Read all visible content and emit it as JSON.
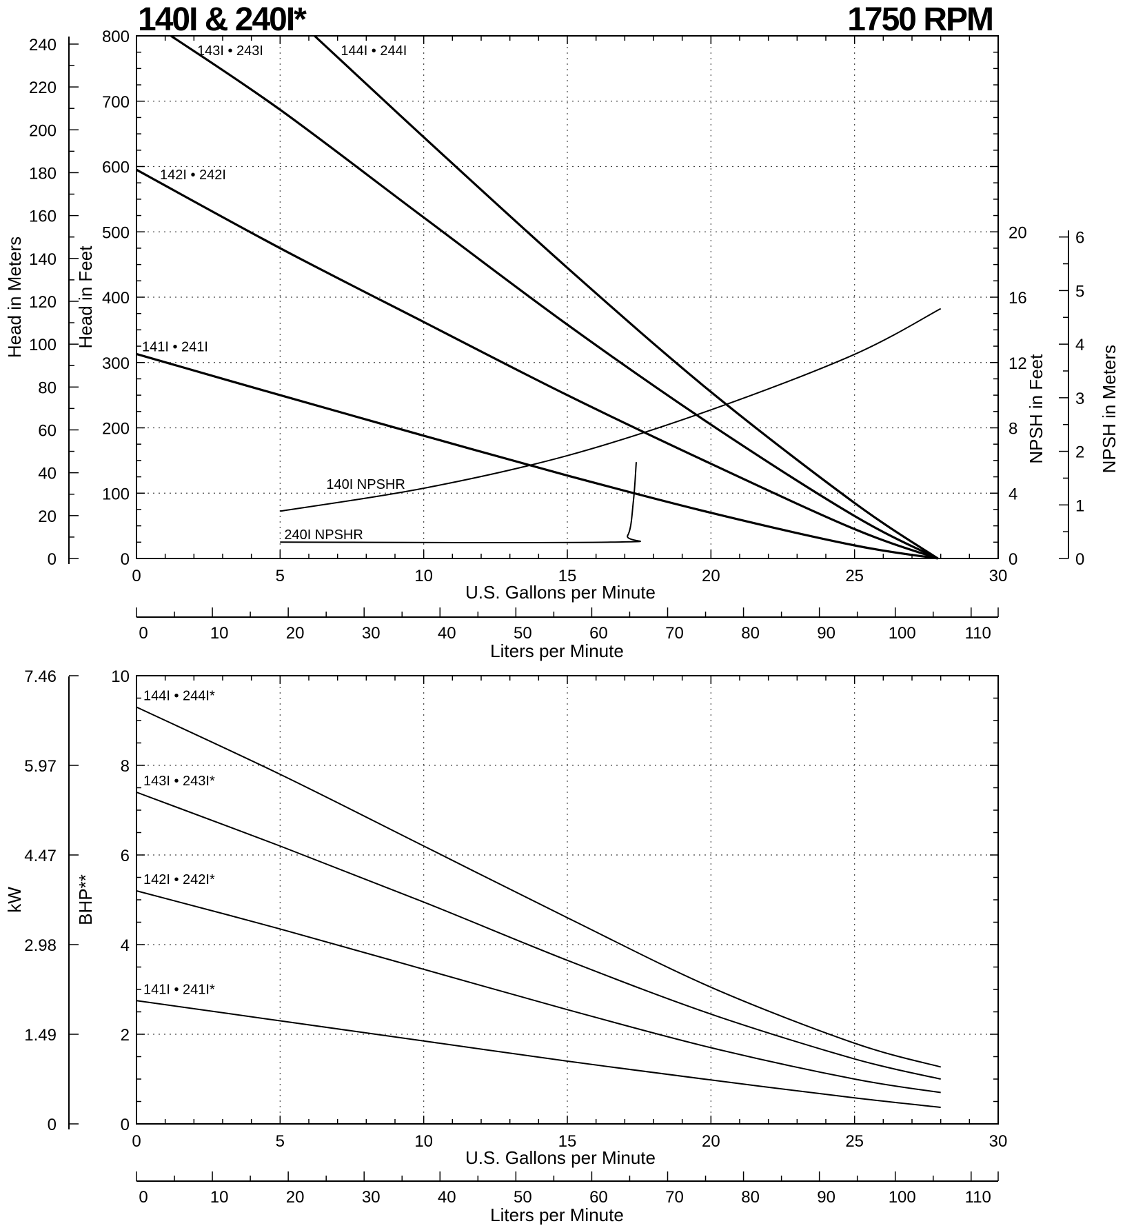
{
  "title_left": "140I & 240I*",
  "title_right": "1750 RPM",
  "chart_data": [
    {
      "type": "line",
      "name": "head-chart",
      "xlabel": "U.S. Gallons per Minute",
      "x2label": "Liters per Minute",
      "ylabel": "Head in Feet",
      "y2label": "Head in Meters",
      "y3label": "NPSH in Feet",
      "y4label": "NPSH in Meters",
      "xlim": [
        0,
        30
      ],
      "ylim": [
        0,
        800
      ],
      "x_ticks": [
        "0",
        "5",
        "10",
        "15",
        "20",
        "25",
        "30"
      ],
      "y_ticks": [
        "0",
        "100",
        "200",
        "300",
        "400",
        "500",
        "600",
        "700",
        "800"
      ],
      "x2_ticks": [
        "0",
        "10",
        "20",
        "30",
        "40",
        "50",
        "60",
        "70",
        "80",
        "90",
        "100",
        "110"
      ],
      "y2_ticks": [
        "0",
        "20",
        "40",
        "60",
        "80",
        "100",
        "120",
        "140",
        "160",
        "180",
        "200",
        "220",
        "240"
      ],
      "npsh_ft_ticks": [
        "0",
        "4",
        "8",
        "12",
        "16",
        "20"
      ],
      "npsh_m_ticks": [
        "0",
        "1",
        "2",
        "3",
        "4",
        "5",
        "6"
      ],
      "grid": true,
      "series": [
        {
          "name": "141I • 241I",
          "kind": "head",
          "x": [
            0,
            5,
            10,
            15,
            20,
            25,
            27.9
          ],
          "y": [
            313,
            250,
            188,
            127,
            70,
            20,
            0
          ]
        },
        {
          "name": "142I • 242I",
          "kind": "head",
          "x": [
            0,
            5,
            10,
            15,
            20,
            25,
            27.9
          ],
          "y": [
            595,
            475,
            362,
            250,
            145,
            45,
            0
          ]
        },
        {
          "name": "143I • 243I",
          "kind": "head",
          "x": [
            1.2,
            5,
            10,
            15,
            20,
            25,
            27.9
          ],
          "y": [
            800,
            687,
            522,
            358,
            205,
            65,
            0
          ]
        },
        {
          "name": "144I • 244I",
          "kind": "head",
          "x": [
            6.2,
            10,
            15,
            20,
            25,
            27.9
          ],
          "y": [
            800,
            645,
            445,
            255,
            85,
            0
          ]
        },
        {
          "name": "140I NPSHR",
          "kind": "npsh_ft",
          "x": [
            5,
            10,
            15,
            20,
            25,
            28
          ],
          "y": [
            2.9,
            4.3,
            6.3,
            9.1,
            12.5,
            15.3
          ]
        },
        {
          "name": "240I NPSHR",
          "kind": "npsh_ft",
          "x": [
            5,
            16.5,
            17.1,
            17.3,
            17.4
          ],
          "y": [
            1,
            1,
            1.4,
            3.5,
            5.9
          ]
        }
      ]
    },
    {
      "type": "line",
      "name": "power-chart",
      "xlabel": "U.S. Gallons per Minute",
      "x2label": "Liters per Minute",
      "ylabel": "BHP**",
      "y2label": "kW",
      "xlim": [
        0,
        30
      ],
      "ylim": [
        0,
        10
      ],
      "x_ticks": [
        "0",
        "5",
        "10",
        "15",
        "20",
        "25",
        "30"
      ],
      "y_ticks": [
        "0",
        "2",
        "4",
        "6",
        "8",
        "10"
      ],
      "x2_ticks": [
        "0",
        "10",
        "20",
        "30",
        "40",
        "50",
        "60",
        "70",
        "80",
        "90",
        "100",
        "110"
      ],
      "y2_ticks": [
        "0",
        "1.49",
        "2.98",
        "4.47",
        "5.97",
        "7.46"
      ],
      "grid": true,
      "series": [
        {
          "name": "141I • 241I*",
          "x": [
            0,
            5,
            10,
            15,
            20,
            25,
            28
          ],
          "y": [
            2.75,
            2.3,
            1.85,
            1.4,
            0.98,
            0.58,
            0.37
          ]
        },
        {
          "name": "142I • 242I*",
          "x": [
            0,
            5,
            10,
            15,
            20,
            25,
            28
          ],
          "y": [
            5.2,
            4.35,
            3.45,
            2.55,
            1.7,
            1.0,
            0.7
          ]
        },
        {
          "name": "143I • 243I*",
          "x": [
            0,
            5,
            10,
            15,
            20,
            25,
            28
          ],
          "y": [
            7.4,
            6.2,
            4.95,
            3.65,
            2.45,
            1.45,
            1.0
          ]
        },
        {
          "name": "144I • 244I*",
          "x": [
            0,
            5,
            10,
            15,
            20,
            25,
            28
          ],
          "y": [
            9.3,
            7.8,
            6.2,
            4.6,
            3.05,
            1.8,
            1.27
          ]
        }
      ]
    }
  ]
}
